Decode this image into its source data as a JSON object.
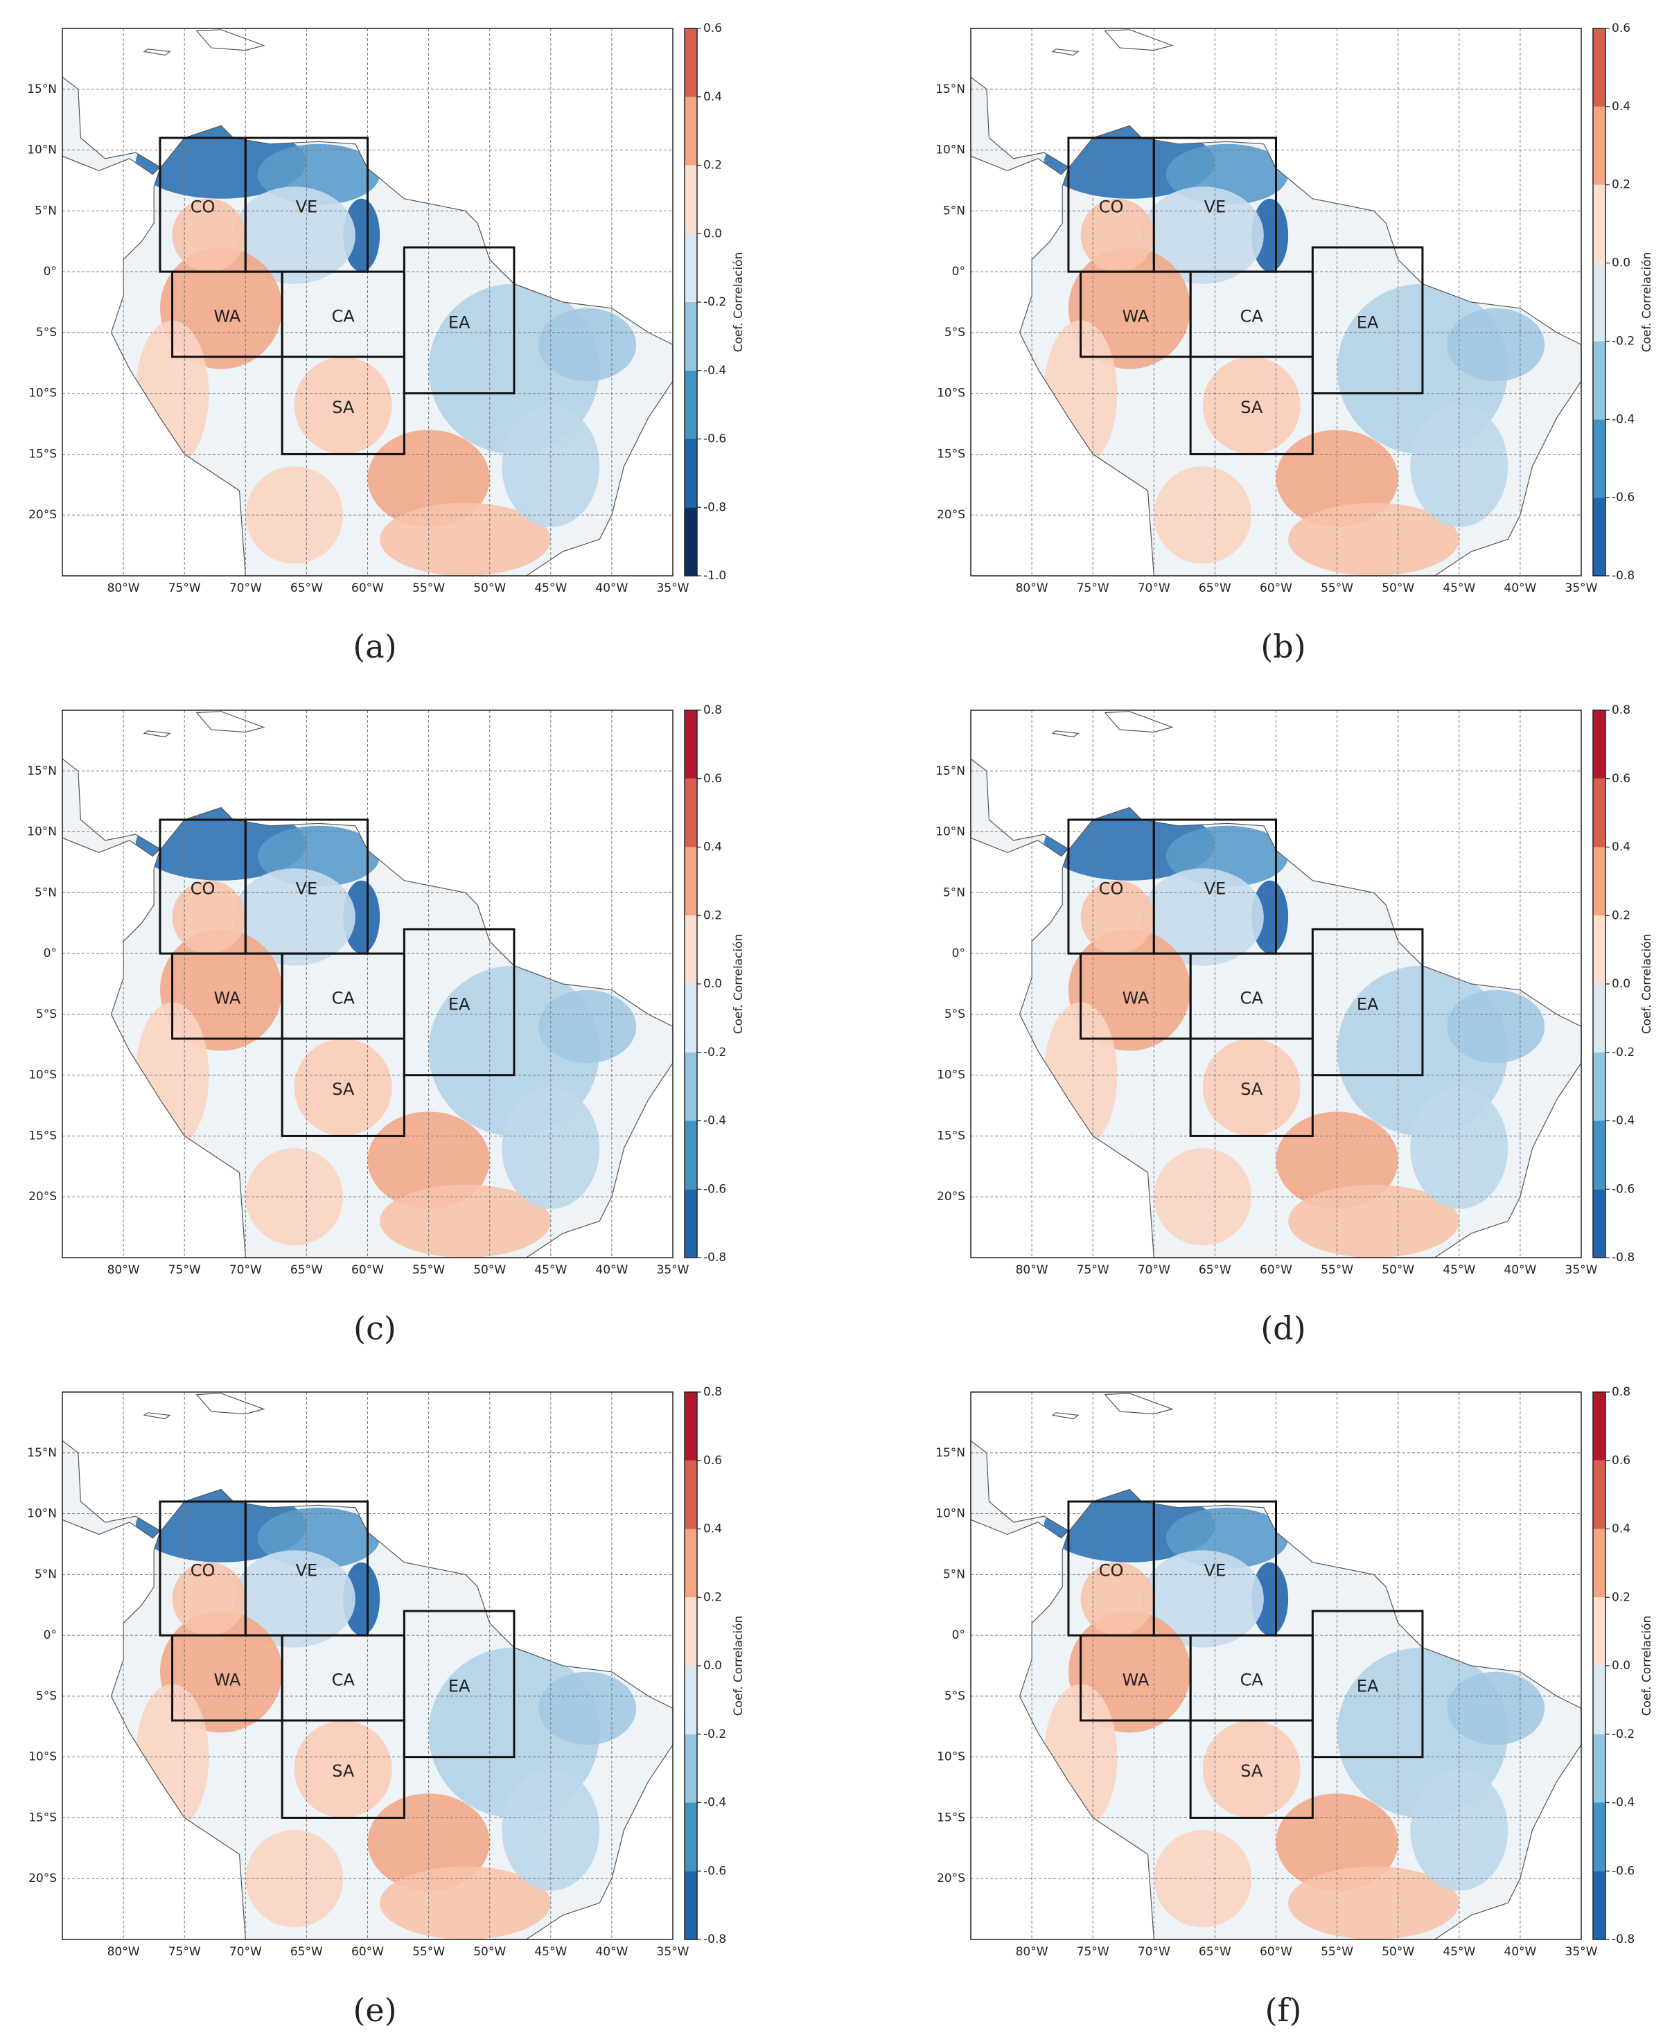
{
  "xticks": [
    {
      "value": -80,
      "label": "80°W"
    },
    {
      "value": -75,
      "label": "75°W"
    },
    {
      "value": -70,
      "label": "70°W"
    },
    {
      "value": -65,
      "label": "65°W"
    },
    {
      "value": -60,
      "label": "60°W"
    },
    {
      "value": -55,
      "label": "55°W"
    },
    {
      "value": -50,
      "label": "50°W"
    },
    {
      "value": -45,
      "label": "45°W"
    },
    {
      "value": -40,
      "label": "40°W"
    },
    {
      "value": -35,
      "label": "35°W"
    }
  ],
  "yticks": [
    {
      "value": 15,
      "label": "15°N"
    },
    {
      "value": 10,
      "label": "10°N"
    },
    {
      "value": 5,
      "label": "5°N"
    },
    {
      "value": 0,
      "label": "0°"
    },
    {
      "value": -5,
      "label": "5°S"
    },
    {
      "value": -10,
      "label": "10°S"
    },
    {
      "value": -15,
      "label": "15°S"
    },
    {
      "value": -20,
      "label": "20°S"
    }
  ],
  "xlim": [
    -85,
    -35
  ],
  "ylim": [
    -25,
    20
  ],
  "regions": [
    {
      "name": "CO",
      "lon": [
        -77,
        -70
      ],
      "lat": [
        0,
        11
      ]
    },
    {
      "name": "VE",
      "lon": [
        -70,
        -60
      ],
      "lat": [
        0,
        11
      ]
    },
    {
      "name": "WA",
      "lon": [
        -76,
        -67
      ],
      "lat": [
        -7,
        0
      ]
    },
    {
      "name": "CA",
      "lon": [
        -67,
        -57
      ],
      "lat": [
        -7,
        0
      ]
    },
    {
      "name": "EA",
      "lon": [
        -57,
        -48
      ],
      "lat": [
        -10,
        2
      ]
    },
    {
      "name": "SA",
      "lon": [
        -67,
        -57
      ],
      "lat": [
        -15,
        -7
      ]
    }
  ],
  "colorbar_label": "Coef. Correlación",
  "colormap": {
    "levels": [
      -1,
      -0.8,
      -0.6,
      -0.4,
      -0.2,
      0,
      0.2,
      0.4,
      0.6,
      0.8
    ],
    "colors": [
      "#0a2f5c",
      "#2166ac",
      "#4393c3",
      "#92c5de",
      "#d9e8f2",
      "#fbe0d2",
      "#f4a582",
      "#d6604d",
      "#b2182b"
    ]
  },
  "panels": [
    {
      "label": "(a)",
      "clim": [
        -1,
        0.6
      ],
      "cticks": [
        0.6,
        0.4,
        0.2,
        {
          "value": 0,
          "label": "0.0"
        },
        -0.2,
        -0.4,
        -0.6,
        -0.8,
        {
          "value": -1,
          "label": "-1.0"
        }
      ]
    },
    {
      "label": "(b)",
      "clim": [
        -0.8,
        0.6
      ],
      "cticks": [
        0.6,
        0.4,
        0.2,
        {
          "value": 0,
          "label": "0.0"
        },
        -0.2,
        -0.4,
        -0.6,
        -0.8
      ]
    },
    {
      "label": "(c)",
      "clim": [
        -0.8,
        0.8
      ],
      "cticks": [
        0.8,
        0.6,
        0.4,
        0.2,
        {
          "value": 0,
          "label": "0.0"
        },
        -0.2,
        -0.4,
        -0.6,
        -0.8
      ]
    },
    {
      "label": "(d)",
      "clim": [
        -0.8,
        0.8
      ],
      "cticks": [
        0.8,
        0.6,
        0.4,
        0.2,
        {
          "value": 0,
          "label": "0.0"
        },
        -0.2,
        -0.4,
        -0.6,
        -0.8
      ]
    },
    {
      "label": "(e)",
      "clim": [
        -0.8,
        0.8
      ],
      "cticks": [
        0.8,
        0.6,
        0.4,
        0.2,
        {
          "value": 0,
          "label": "0.0"
        },
        -0.2,
        -0.4,
        -0.6,
        -0.8
      ]
    },
    {
      "label": "(f)",
      "clim": [
        -0.8,
        0.8
      ],
      "cticks": [
        0.8,
        0.6,
        0.4,
        0.2,
        {
          "value": 0,
          "label": "0.0"
        },
        -0.2,
        -0.4,
        -0.6,
        -0.8
      ]
    }
  ]
}
